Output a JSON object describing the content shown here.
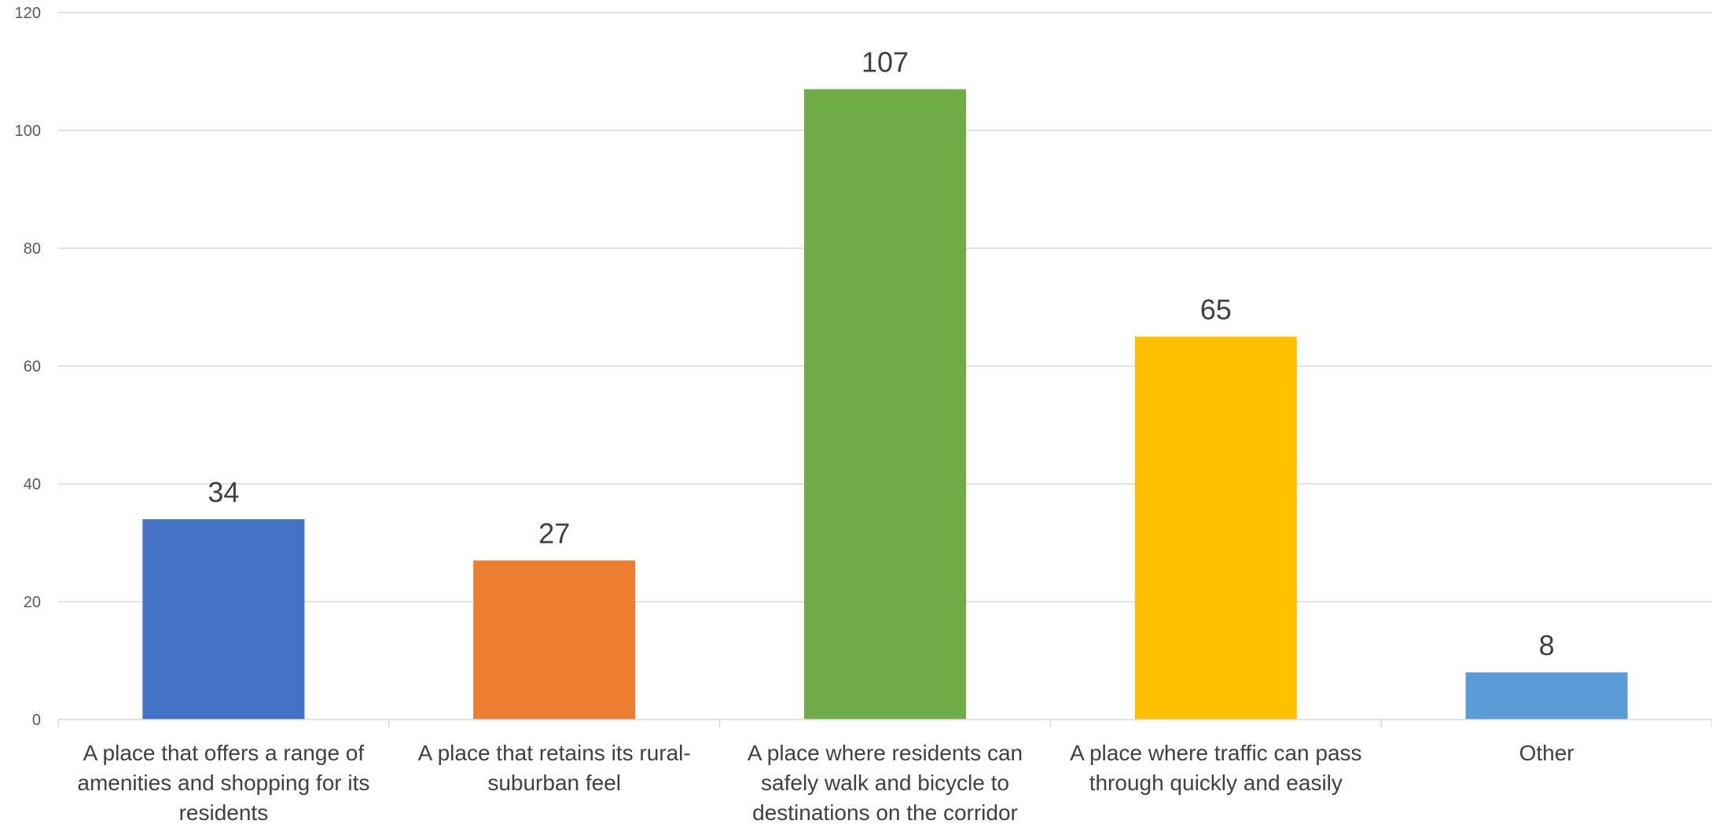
{
  "chart_data": {
    "type": "bar",
    "title": "",
    "xlabel": "",
    "ylabel": "",
    "ylim": [
      0,
      120
    ],
    "yticks": [
      0,
      20,
      40,
      60,
      80,
      100,
      120
    ],
    "grid": true,
    "categories": [
      "A place that offers a range of amenities and shopping for its residents",
      "A place that retains its rural-suburban feel",
      "A place where residents can safely walk and bicycle to destinations on the corridor",
      "A place where traffic can pass through quickly and easily",
      "Other"
    ],
    "category_label_lines": [
      [
        "A place that offers a range of",
        "amenities and shopping for its",
        "residents"
      ],
      [
        "A place that retains its rural-",
        "suburban feel"
      ],
      [
        "A place where residents can",
        "safely walk and bicycle to",
        "destinations on the corridor"
      ],
      [
        "A place where traffic can pass",
        "through quickly and easily"
      ],
      [
        "Other"
      ]
    ],
    "values": [
      34,
      27,
      107,
      65,
      8
    ],
    "data_labels": [
      "34",
      "27",
      "107",
      "65",
      "8"
    ],
    "colors": [
      "#4472C4",
      "#ED7D31",
      "#70AD47",
      "#FFC000",
      "#5B9BD5"
    ]
  }
}
